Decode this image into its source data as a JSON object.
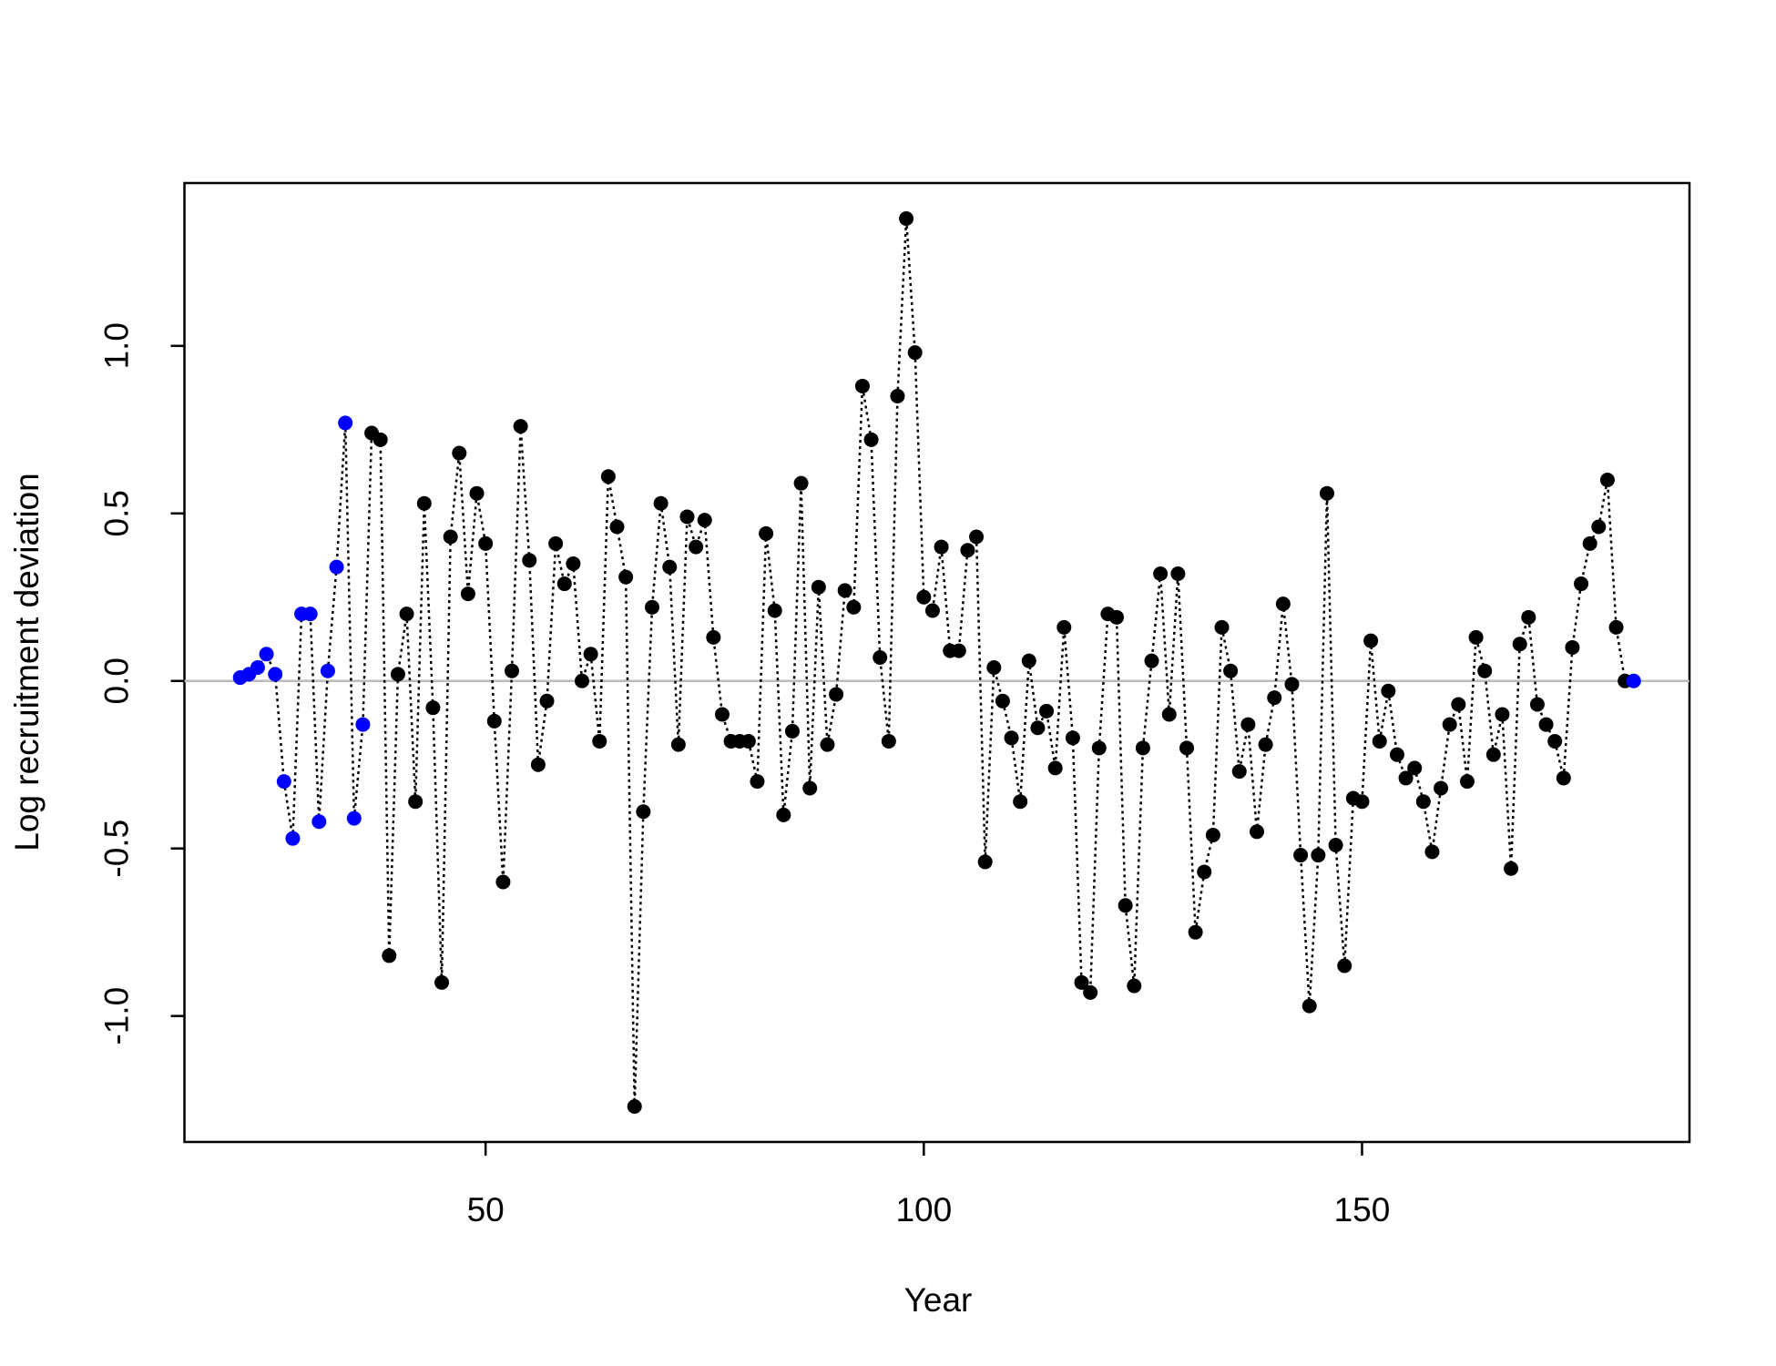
{
  "chart_data": {
    "type": "line",
    "xlabel": "Year",
    "ylabel": "Log recruitment deviation",
    "x": [
      22,
      23,
      24,
      25,
      26,
      27,
      28,
      29,
      30,
      31,
      32,
      33,
      34,
      35,
      36,
      37,
      38,
      39,
      40,
      41,
      42,
      43,
      44,
      45,
      46,
      47,
      48,
      49,
      50,
      51,
      52,
      53,
      54,
      55,
      56,
      57,
      58,
      59,
      60,
      61,
      62,
      63,
      64,
      65,
      66,
      67,
      68,
      69,
      70,
      71,
      72,
      73,
      74,
      75,
      76,
      77,
      78,
      79,
      80,
      81,
      82,
      83,
      84,
      85,
      86,
      87,
      88,
      89,
      90,
      91,
      92,
      93,
      94,
      95,
      96,
      97,
      98,
      99,
      100,
      101,
      102,
      103,
      104,
      105,
      106,
      107,
      108,
      109,
      110,
      111,
      112,
      113,
      114,
      115,
      116,
      117,
      118,
      119,
      120,
      121,
      122,
      123,
      124,
      125,
      126,
      127,
      128,
      129,
      130,
      131,
      132,
      133,
      134,
      135,
      136,
      137,
      138,
      139,
      140,
      141,
      142,
      143,
      144,
      145,
      146,
      147,
      148,
      149,
      150,
      151,
      152,
      153,
      154,
      155,
      156,
      157,
      158,
      159,
      160,
      161,
      162,
      163,
      164,
      165,
      166,
      167,
      168,
      169,
      170,
      171,
      172,
      173,
      174,
      175,
      176,
      177,
      178,
      179,
      180,
      181
    ],
    "values": [
      0.01,
      0.02,
      0.04,
      0.08,
      0.02,
      -0.3,
      -0.47,
      0.2,
      0.2,
      -0.42,
      0.03,
      0.34,
      0.77,
      -0.41,
      -0.13,
      0.74,
      0.72,
      -0.82,
      0.02,
      0.2,
      -0.36,
      0.53,
      -0.08,
      -0.9,
      0.43,
      0.68,
      0.26,
      0.56,
      0.41,
      -0.12,
      -0.6,
      0.03,
      0.76,
      0.36,
      -0.25,
      -0.06,
      0.41,
      0.29,
      0.35,
      0.0,
      0.08,
      -0.18,
      0.61,
      0.46,
      0.31,
      -1.27,
      -0.39,
      0.22,
      0.53,
      0.34,
      -0.19,
      0.49,
      0.4,
      0.48,
      0.13,
      -0.1,
      -0.18,
      -0.18,
      -0.18,
      -0.3,
      0.44,
      0.21,
      -0.4,
      -0.15,
      0.59,
      -0.32,
      0.28,
      -0.19,
      -0.04,
      0.27,
      0.22,
      0.88,
      0.72,
      0.07,
      -0.18,
      0.85,
      1.38,
      0.98,
      0.25,
      0.21,
      0.4,
      0.09,
      0.09,
      0.39,
      0.43,
      -0.54,
      0.04,
      -0.06,
      -0.17,
      -0.36,
      0.06,
      -0.14,
      -0.09,
      -0.26,
      0.16,
      -0.17,
      -0.9,
      -0.93,
      -0.2,
      0.2,
      0.19,
      -0.67,
      -0.91,
      -0.2,
      0.06,
      0.32,
      -0.1,
      0.32,
      -0.2,
      -0.75,
      -0.57,
      -0.46,
      0.16,
      0.03,
      -0.27,
      -0.13,
      -0.45,
      -0.19,
      -0.05,
      0.23,
      -0.01,
      -0.52,
      -0.97,
      -0.52,
      0.56,
      -0.49,
      -0.85,
      -0.35,
      -0.36,
      0.12,
      -0.18,
      -0.03,
      -0.22,
      -0.29,
      -0.26,
      -0.36,
      -0.51,
      -0.32,
      -0.13,
      -0.07,
      -0.3,
      0.13,
      0.03,
      -0.22,
      -0.1,
      -0.56,
      0.11,
      0.19,
      -0.07,
      -0.13,
      -0.18,
      -0.29,
      0.1,
      0.29,
      0.41,
      0.46,
      0.6,
      0.16,
      0.0,
      0.0
    ],
    "colors": [
      "#0000ff",
      "#0000ff",
      "#0000ff",
      "#0000ff",
      "#0000ff",
      "#0000ff",
      "#0000ff",
      "#0000ff",
      "#0000ff",
      "#0000ff",
      "#0000ff",
      "#0000ff",
      "#0000ff",
      "#0000ff",
      "#0000ff",
      "#000000",
      "#000000",
      "#000000",
      "#000000",
      "#000000",
      "#000000",
      "#000000",
      "#000000",
      "#000000",
      "#000000",
      "#000000",
      "#000000",
      "#000000",
      "#000000",
      "#000000",
      "#000000",
      "#000000",
      "#000000",
      "#000000",
      "#000000",
      "#000000",
      "#000000",
      "#000000",
      "#000000",
      "#000000",
      "#000000",
      "#000000",
      "#000000",
      "#000000",
      "#000000",
      "#000000",
      "#000000",
      "#000000",
      "#000000",
      "#000000",
      "#000000",
      "#000000",
      "#000000",
      "#000000",
      "#000000",
      "#000000",
      "#000000",
      "#000000",
      "#000000",
      "#000000",
      "#000000",
      "#000000",
      "#000000",
      "#000000",
      "#000000",
      "#000000",
      "#000000",
      "#000000",
      "#000000",
      "#000000",
      "#000000",
      "#000000",
      "#000000",
      "#000000",
      "#000000",
      "#000000",
      "#000000",
      "#000000",
      "#000000",
      "#000000",
      "#000000",
      "#000000",
      "#000000",
      "#000000",
      "#000000",
      "#000000",
      "#000000",
      "#000000",
      "#000000",
      "#000000",
      "#000000",
      "#000000",
      "#000000",
      "#000000",
      "#000000",
      "#000000",
      "#000000",
      "#000000",
      "#000000",
      "#000000",
      "#000000",
      "#000000",
      "#000000",
      "#000000",
      "#000000",
      "#000000",
      "#000000",
      "#000000",
      "#000000",
      "#000000",
      "#000000",
      "#000000",
      "#000000",
      "#000000",
      "#000000",
      "#000000",
      "#000000",
      "#000000",
      "#000000",
      "#000000",
      "#000000",
      "#000000",
      "#000000",
      "#000000",
      "#000000",
      "#000000",
      "#000000",
      "#000000",
      "#000000",
      "#000000",
      "#000000",
      "#000000",
      "#000000",
      "#000000",
      "#000000",
      "#000000",
      "#000000",
      "#000000",
      "#000000",
      "#000000",
      "#000000",
      "#000000",
      "#000000",
      "#000000",
      "#000000",
      "#000000",
      "#000000",
      "#000000",
      "#000000",
      "#000000",
      "#000000",
      "#000000",
      "#000000",
      "#000000",
      "#000000",
      "#000000",
      "#000000",
      "#000000",
      "#000000",
      "#0000ff"
    ],
    "line_color": "#000000",
    "line_style": "dotted",
    "hline": 0,
    "hline_color": "#bbbbbb",
    "xlim": [
      15.64,
      187.36
    ],
    "xticks": [
      50,
      100,
      150
    ],
    "ylim": [
      -1.376,
      1.486
    ],
    "yticks": [
      {
        "value": -1,
        "label": "-1.0"
      },
      -0.5,
      {
        "value": 0,
        "label": "0.0"
      },
      0.5,
      {
        "value": 1,
        "label": "1.0"
      }
    ]
  }
}
